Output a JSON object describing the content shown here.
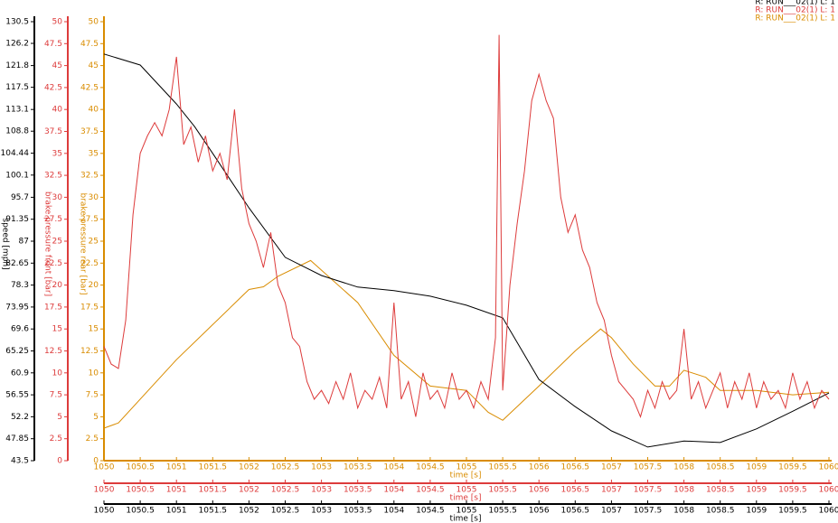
{
  "chart_data": [
    {
      "type": "line",
      "ylabel": "speed [mph]",
      "xlabel": "time [s]",
      "xlim": [
        1050,
        1060
      ],
      "xticks": [
        1050,
        1050.5,
        1051,
        1051.5,
        1052,
        1052.5,
        1053,
        1053.5,
        1054,
        1054.5,
        1055,
        1055.5,
        1056,
        1056.5,
        1057,
        1057.5,
        1058,
        1058.5,
        1059,
        1059.5,
        1060
      ],
      "ylim": [
        43.5,
        130.5
      ],
      "yticks": [
        43.5,
        47.85,
        52.2,
        56.55,
        60.9,
        65.25,
        69.6,
        73.95,
        78.3,
        82.65,
        87,
        91.35,
        95.7,
        100.1,
        104.44,
        108.8,
        113.1,
        117.5,
        121.8,
        126.2,
        130.5
      ],
      "x": [
        1050,
        1050.5,
        1051,
        1051.25,
        1051.5,
        1052,
        1052.5,
        1053,
        1053.5,
        1054,
        1054.5,
        1055,
        1055.5,
        1056,
        1056.5,
        1057,
        1057.5,
        1058,
        1058.5,
        1059,
        1059.5,
        1060
      ],
      "series": [
        {
          "name": "R: RUN___02(1)  L: 1",
          "color": "#000000",
          "values": [
            124.1,
            121.9,
            114.2,
            109.7,
            104.4,
            93.6,
            83.8,
            80.2,
            77.9,
            77.2,
            76.1,
            74.3,
            71.8,
            59.6,
            54.2,
            49.4,
            46.2,
            47.4,
            47.1,
            49.8,
            53.3,
            56.9
          ]
        }
      ]
    },
    {
      "type": "line",
      "ylabel": "brake pressure front [bar]",
      "xlabel": "time [s]",
      "xlim": [
        1050,
        1060
      ],
      "xticks": [
        1050,
        1050.5,
        1051,
        1051.5,
        1052,
        1052.5,
        1053,
        1053.5,
        1054,
        1054.5,
        1055,
        1055.5,
        1056,
        1056.5,
        1057,
        1057.5,
        1058,
        1058.5,
        1059,
        1059.5,
        1060
      ],
      "ylim": [
        0,
        50
      ],
      "yticks": [
        0,
        2.5,
        5,
        7.5,
        10,
        12.5,
        15,
        17.5,
        20,
        22.5,
        25,
        27.5,
        30,
        32.5,
        35,
        37.5,
        40,
        42.5,
        45,
        47.5,
        50
      ],
      "x": [
        1050,
        1050.1,
        1050.2,
        1050.3,
        1050.4,
        1050.5,
        1050.6,
        1050.7,
        1050.8,
        1050.9,
        1051,
        1051.1,
        1051.2,
        1051.3,
        1051.4,
        1051.5,
        1051.6,
        1051.7,
        1051.8,
        1051.9,
        1052,
        1052.1,
        1052.2,
        1052.3,
        1052.4,
        1052.5,
        1052.6,
        1052.7,
        1052.8,
        1052.9,
        1053,
        1053.1,
        1053.2,
        1053.3,
        1053.4,
        1053.5,
        1053.6,
        1053.7,
        1053.8,
        1053.9,
        1054,
        1054.1,
        1054.2,
        1054.3,
        1054.4,
        1054.5,
        1054.6,
        1054.7,
        1054.8,
        1054.9,
        1055,
        1055.1,
        1055.2,
        1055.3,
        1055.4,
        1055.45,
        1055.5,
        1055.6,
        1055.7,
        1055.8,
        1055.9,
        1056,
        1056.1,
        1056.2,
        1056.3,
        1056.4,
        1056.5,
        1056.6,
        1056.7,
        1056.8,
        1056.9,
        1057,
        1057.1,
        1057.2,
        1057.3,
        1057.4,
        1057.5,
        1057.6,
        1057.7,
        1057.8,
        1057.9,
        1058,
        1058.1,
        1058.2,
        1058.3,
        1058.4,
        1058.5,
        1058.6,
        1058.7,
        1058.8,
        1058.9,
        1059,
        1059.1,
        1059.2,
        1059.3,
        1059.4,
        1059.5,
        1059.6,
        1059.7,
        1059.8,
        1059.9,
        1060
      ],
      "series": [
        {
          "name": "R: RUN___02(1)  L: 1",
          "color": "#dd3b3b",
          "values": [
            13,
            11,
            10.5,
            16,
            28,
            35,
            37,
            38.5,
            37,
            40,
            46,
            36,
            38,
            34,
            37,
            33,
            35,
            32,
            40,
            31,
            27,
            25,
            22,
            26,
            20,
            18,
            14,
            13,
            9,
            7,
            8,
            6.5,
            9,
            7,
            10,
            6,
            8,
            7,
            9.5,
            6,
            18,
            7,
            9,
            5,
            10,
            7,
            8,
            6,
            10,
            7,
            8,
            6,
            9,
            7,
            14,
            48.5,
            8,
            20,
            27,
            33,
            41,
            44,
            41,
            39,
            30,
            26,
            28,
            24,
            22,
            18,
            16,
            12,
            9,
            8,
            7,
            5,
            8,
            6,
            9,
            7,
            8,
            15,
            7,
            9,
            6,
            8,
            10,
            6,
            9,
            7,
            10,
            6,
            9,
            7,
            8,
            6,
            10,
            7,
            9,
            6,
            8,
            7
          ]
        }
      ]
    },
    {
      "type": "line",
      "ylabel": "brake pressure rear [bar]",
      "xlabel": "time [s]",
      "xlim": [
        1050,
        1060
      ],
      "xticks": [
        1050,
        1050.5,
        1051,
        1051.5,
        1052,
        1052.5,
        1053,
        1053.5,
        1054,
        1054.5,
        1055,
        1055.5,
        1056,
        1056.5,
        1057,
        1057.5,
        1058,
        1058.5,
        1059,
        1059.5,
        1060
      ],
      "ylim": [
        0,
        50
      ],
      "yticks": [
        0,
        2.5,
        5,
        7.5,
        10,
        12.5,
        15,
        17.5,
        20,
        22.5,
        25,
        27.5,
        30,
        32.5,
        35,
        37.5,
        40,
        42.5,
        45,
        47.5,
        50
      ],
      "x": [
        1050,
        1050.2,
        1051,
        1052,
        1052.2,
        1052.4,
        1052.85,
        1053.5,
        1054,
        1054.5,
        1055,
        1055.3,
        1055.5,
        1056,
        1056.5,
        1056.85,
        1057,
        1057.3,
        1057.6,
        1057.8,
        1058,
        1058.3,
        1058.5,
        1059,
        1059.5,
        1060
      ],
      "series": [
        {
          "name": "R: RUN___02(1)  L: 1",
          "color": "#d98c00",
          "values": [
            3.7,
            4.3,
            11.5,
            19.5,
            19.8,
            21,
            22.8,
            18,
            12,
            8.5,
            8,
            5.5,
            4.6,
            8.5,
            12.5,
            15,
            14,
            11,
            8.5,
            8.5,
            10.3,
            9.5,
            8,
            8,
            7.5,
            7.8
          ]
        }
      ]
    }
  ]
}
